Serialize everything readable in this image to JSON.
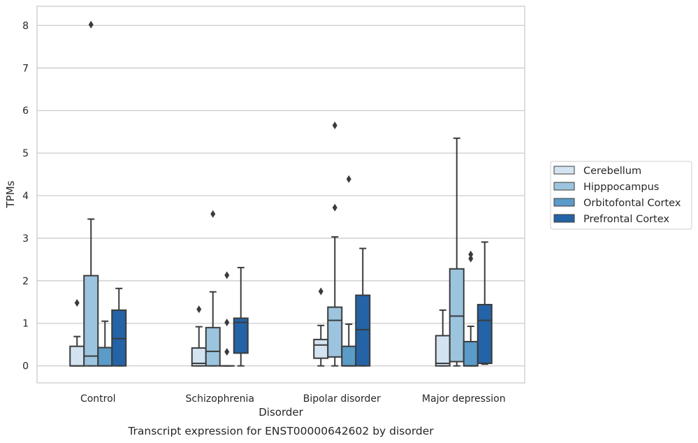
{
  "chart_data": {
    "type": "box",
    "caption": "Transcript expression for ENST00000642602 by disorder",
    "xlabel": "Disorder",
    "ylabel": "TPMs",
    "ylim": [
      -0.4,
      8.45
    ],
    "yticks": [
      0,
      1,
      2,
      3,
      4,
      5,
      6,
      7,
      8
    ],
    "grid": "horizontal",
    "legend_position": "right",
    "categories": [
      "Control",
      "Schizophrenia",
      "Bipolar disorder",
      "Major depression"
    ],
    "series": [
      {
        "name": "Cerebellum",
        "color": "#d4e3f2",
        "boxes": [
          {
            "whislo": 0.0,
            "q1": 0.0,
            "med": 0.0,
            "q3": 0.46,
            "whishi": 0.69,
            "fliers": [
              1.48
            ]
          },
          {
            "whislo": 0.0,
            "q1": 0.0,
            "med": 0.06,
            "q3": 0.42,
            "whishi": 0.92,
            "fliers": [
              1.33
            ]
          },
          {
            "whislo": 0.0,
            "q1": 0.18,
            "med": 0.49,
            "q3": 0.62,
            "whishi": 0.95,
            "fliers": [
              1.75
            ]
          },
          {
            "whislo": 0.0,
            "q1": 0.0,
            "med": 0.06,
            "q3": 0.71,
            "whishi": 1.31,
            "fliers": []
          }
        ]
      },
      {
        "name": "Hipppocampus",
        "color": "#9cc4de",
        "boxes": [
          {
            "whislo": 0.0,
            "q1": 0.0,
            "med": 0.23,
            "q3": 2.12,
            "whishi": 3.45,
            "fliers": [
              8.02
            ]
          },
          {
            "whislo": 0.0,
            "q1": 0.0,
            "med": 0.34,
            "q3": 0.9,
            "whishi": 1.74,
            "fliers": [
              3.57
            ]
          },
          {
            "whislo": 0.0,
            "q1": 0.21,
            "med": 1.07,
            "q3": 1.38,
            "whishi": 3.03,
            "fliers": [
              3.72,
              5.65
            ]
          },
          {
            "whislo": 0.0,
            "q1": 0.1,
            "med": 1.17,
            "q3": 2.28,
            "whishi": 5.35,
            "fliers": []
          }
        ]
      },
      {
        "name": "Orbitofontal Cortex",
        "color": "#5a9bc8",
        "boxes": [
          {
            "whislo": 0.0,
            "q1": 0.0,
            "med": 0.0,
            "q3": 0.43,
            "whishi": 1.05,
            "fliers": []
          },
          {
            "whislo": 0.0,
            "q1": 0.0,
            "med": 0.0,
            "q3": 0.0,
            "whishi": 0.0,
            "fliers": [
              0.33,
              1.02,
              2.13
            ]
          },
          {
            "whislo": 0.0,
            "q1": 0.0,
            "med": 0.0,
            "q3": 0.46,
            "whishi": 0.98,
            "fliers": [
              4.39
            ]
          },
          {
            "whislo": 0.0,
            "q1": 0.0,
            "med": 0.0,
            "q3": 0.57,
            "whishi": 0.93,
            "fliers": [
              2.52,
              2.62
            ]
          }
        ]
      },
      {
        "name": "Prefrontal Cortex",
        "color": "#2463a6",
        "boxes": [
          {
            "whislo": 0.0,
            "q1": 0.0,
            "med": 0.64,
            "q3": 1.31,
            "whishi": 1.82,
            "fliers": []
          },
          {
            "whislo": 0.0,
            "q1": 0.3,
            "med": 1.02,
            "q3": 1.12,
            "whishi": 2.31,
            "fliers": []
          },
          {
            "whislo": 0.0,
            "q1": 0.0,
            "med": 0.85,
            "q3": 1.66,
            "whishi": 2.76,
            "fliers": []
          },
          {
            "whislo": 0.04,
            "q1": 0.06,
            "med": 1.07,
            "q3": 1.44,
            "whishi": 2.91,
            "fliers": []
          }
        ]
      }
    ]
  }
}
